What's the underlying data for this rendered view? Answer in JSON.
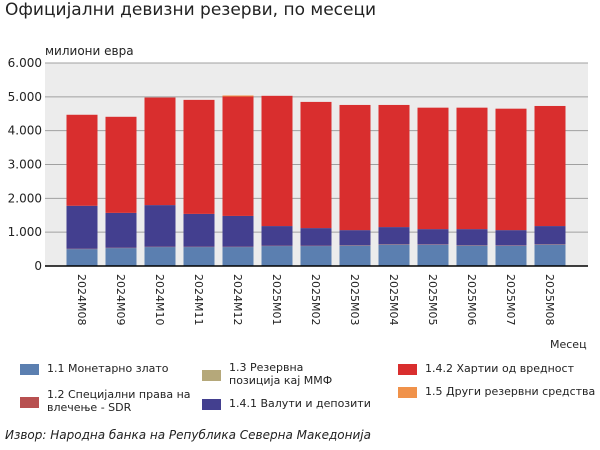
{
  "chart_data": {
    "type": "bar",
    "stacked": true,
    "title": "Официјални девизни резерви, по месеци",
    "ylabel": "милиони евра",
    "xlabel": "Месец",
    "ylim": [
      0,
      6000
    ],
    "yticks": [
      "0",
      "1.000",
      "2.000",
      "3.000",
      "4.000",
      "5.000",
      "6.000"
    ],
    "ytick_values": [
      0,
      1000,
      2000,
      3000,
      4000,
      5000,
      6000
    ],
    "categories": [
      "2024M08",
      "2024M09",
      "2024M10",
      "2024M11",
      "2024M12",
      "2025M01",
      "2025M02",
      "2025M03",
      "2025M04",
      "2025M05",
      "2025M06",
      "2025M07",
      "2025M08"
    ],
    "series": [
      {
        "name": "1.1 Монетарно злато",
        "color": "#5b7fb0",
        "values": [
          500,
          530,
          560,
          560,
          560,
          590,
          590,
          610,
          640,
          630,
          610,
          600,
          640
        ]
      },
      {
        "name": "1.2 Специјални права на влечење - SDR",
        "color": "#b85050",
        "values": [
          10,
          10,
          10,
          10,
          10,
          10,
          10,
          10,
          10,
          10,
          10,
          10,
          10
        ]
      },
      {
        "name": "1.3 Резервна позиција кај ММФ",
        "color": "#b5a87a",
        "values": [
          0,
          0,
          0,
          0,
          0,
          0,
          0,
          0,
          0,
          0,
          0,
          0,
          0
        ]
      },
      {
        "name": "1.4.1 Валути и депозити",
        "color": "#433f8f",
        "values": [
          1270,
          1030,
          1230,
          970,
          910,
          580,
          520,
          440,
          500,
          450,
          470,
          450,
          530
        ]
      },
      {
        "name": "1.4.2 Хартии од вредност",
        "color": "#d92e2e",
        "values": [
          2690,
          2840,
          3180,
          3370,
          3530,
          3850,
          3730,
          3700,
          3610,
          3590,
          3590,
          3590,
          3550
        ]
      },
      {
        "name": "1.5 Други резервни средства",
        "color": "#f0924a",
        "values": [
          0,
          0,
          0,
          0,
          30,
          0,
          0,
          0,
          0,
          0,
          0,
          0,
          0
        ]
      }
    ],
    "grid": true,
    "legend": "bottom"
  },
  "legend_items": [
    {
      "label": "1.1 Монетарно злато",
      "color": "#5b7fb0"
    },
    {
      "label": "1.2 Специјални права на влечење - SDR",
      "color": "#b85050"
    },
    {
      "label": "1.3 Резервна позиција кај ММФ",
      "color": "#b5a87a"
    },
    {
      "label": "1.4.1 Валути и депозити",
      "color": "#433f8f"
    },
    {
      "label": "1.4.2 Хартии од вредност",
      "color": "#d92e2e"
    },
    {
      "label": "1.5 Други резервни средства",
      "color": "#f0924a"
    }
  ],
  "source": "Извор: Народна банка на Република Северна Македонија"
}
